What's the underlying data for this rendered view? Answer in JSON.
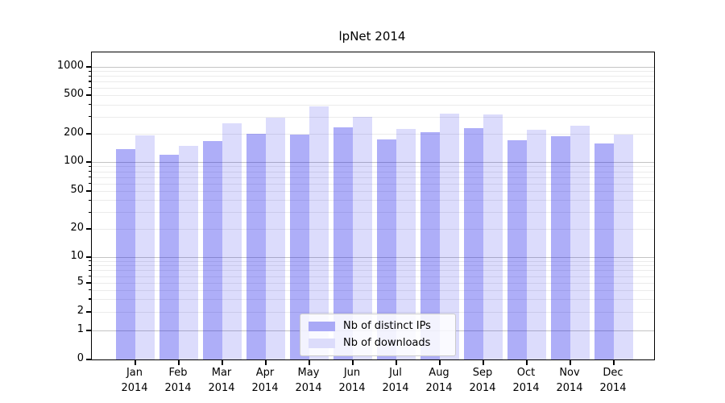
{
  "chart_data": {
    "type": "bar",
    "title": "lpNet 2014",
    "categories": [
      "Jan",
      "Feb",
      "Mar",
      "Apr",
      "May",
      "Jun",
      "Jul",
      "Aug",
      "Sep",
      "Oct",
      "Nov",
      "Dec"
    ],
    "x_tick_year": "2014",
    "series": [
      {
        "name": "Nb of distinct IPs",
        "color": "#a9a9f6",
        "values": [
          137,
          120,
          169,
          200,
          196,
          235,
          174,
          209,
          228,
          172,
          190,
          158
        ]
      },
      {
        "name": "Nb of downloads",
        "color": "#dcdcfb",
        "values": [
          192,
          150,
          257,
          293,
          385,
          300,
          225,
          325,
          315,
          221,
          240,
          198
        ]
      }
    ],
    "y_ticks": [
      0,
      1,
      2,
      5,
      10,
      20,
      50,
      100,
      200,
      500,
      1000
    ],
    "y_scale": "symlog",
    "ylim": [
      0,
      1400
    ],
    "grid": true,
    "legend_position": "lower center",
    "colors": {
      "bar_dark_rgba": "rgba(10,10,233,0.33)",
      "bar_light_rgba": "rgba(10,10,233,0.14)",
      "grid_major": "#c4c4c4",
      "grid_minor": "#ebebeb",
      "axis": "#000000"
    }
  }
}
